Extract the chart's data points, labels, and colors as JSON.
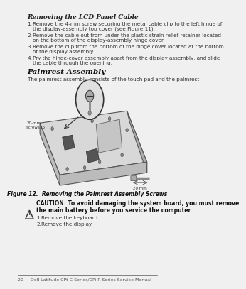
{
  "bg_color": "#e8e8e8",
  "page_bg": "#f0f0f0",
  "title1": "Removing the LCD Panel Cable",
  "steps1": [
    "Remove the 4-mm screw securing the metal cable clip to the left hinge of\nthe display-assembly top cover (see Figure 11).",
    "Remove the cable out from under the plastic strain relief retainer located\non the bottom of the display-assembly hinge cover.",
    "Remove the clip from the bottom of the hinge cover located at the bottom\nof the display assembly.",
    "Pry the hinge-cover assembly apart from the display assembly, and slide\nthe cable through the opening."
  ],
  "title2": "Palmrest Assembly",
  "desc2": "The palmrest assembly consists of the touch pad and the palmrest.",
  "fig_caption": "Figure 12.  Removing the Palmrest Assembly Screws",
  "caution_text": "CAUTION: To avoid damaging the system board, you must remove\nthe main battery before you service the computer.",
  "steps2": [
    "Remove the keyboard.",
    "Remove the display."
  ],
  "footer": "20     Dell Latitude CPt C-Series/CPi R-Series Service Manual",
  "screw_label": "20-mm\nscrews (5)",
  "screw_size_label": "20 mm"
}
